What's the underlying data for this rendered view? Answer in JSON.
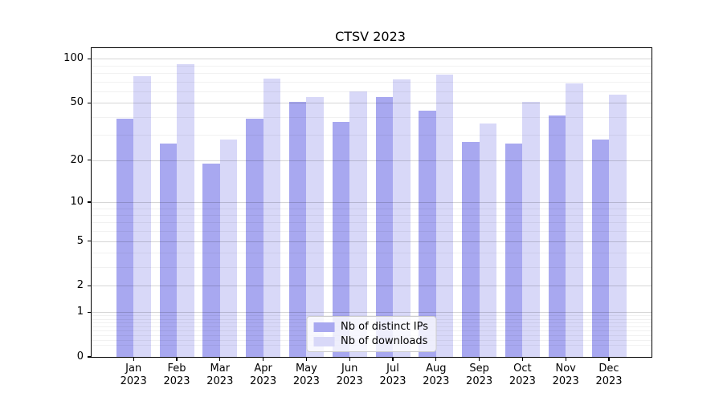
{
  "chart_data": {
    "type": "bar",
    "title": "CTSV 2023",
    "categories": [
      "Jan 2023",
      "Feb 2023",
      "Mar 2023",
      "Apr 2023",
      "May 2023",
      "Jun 2023",
      "Jul 2023",
      "Aug 2023",
      "Sep 2023",
      "Oct 2023",
      "Nov 2023",
      "Dec 2023"
    ],
    "x_tick_line1": [
      "Jan",
      "Feb",
      "Mar",
      "Apr",
      "May",
      "Jun",
      "Jul",
      "Aug",
      "Sep",
      "Oct",
      "Nov",
      "Dec"
    ],
    "x_tick_line2": "2023",
    "series": [
      {
        "name": "Nb of distinct IPs",
        "color": "#a8a8f0",
        "values": [
          39,
          26,
          19,
          39,
          51,
          37,
          55,
          44,
          27,
          26,
          41,
          28
        ]
      },
      {
        "name": "Nb of downloads",
        "color": "#d8d8f8",
        "values": [
          76,
          92,
          28,
          73,
          55,
          60,
          72,
          78,
          36,
          51,
          68,
          57
        ]
      }
    ],
    "yscale": "log1p",
    "yticks": [
      0,
      1,
      2,
      5,
      10,
      20,
      50,
      100
    ],
    "minor_yticks": [
      0.2,
      0.3,
      0.4,
      0.5,
      0.6,
      0.7,
      0.8,
      0.9,
      3,
      4,
      6,
      7,
      8,
      9,
      30,
      40,
      60,
      70,
      80,
      90
    ],
    "ylim": [
      0,
      118
    ],
    "grid": true,
    "legend_position": "lower center",
    "axis_color": "#000000",
    "background_color": "#ffffff"
  }
}
